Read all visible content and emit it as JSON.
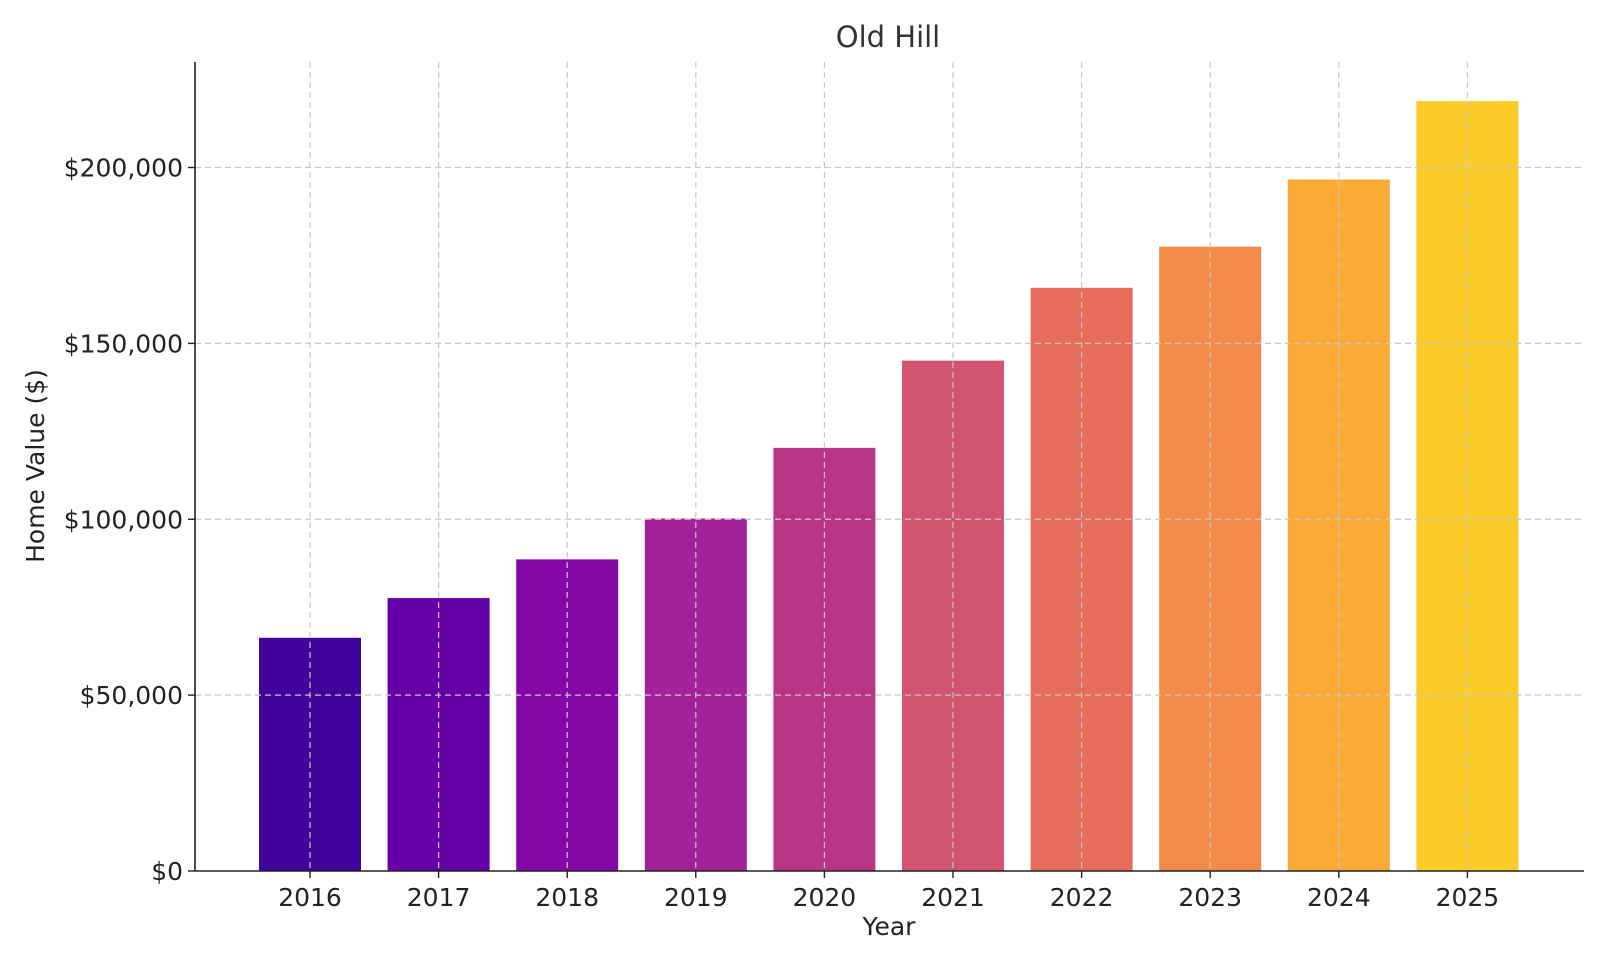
{
  "chart_data": {
    "type": "bar",
    "title": "Old Hill",
    "xlabel": "Year",
    "ylabel": "Home Value ($)",
    "categories": [
      "2016",
      "2017",
      "2018",
      "2019",
      "2020",
      "2021",
      "2022",
      "2023",
      "2024",
      "2025"
    ],
    "values": [
      66300,
      77600,
      88600,
      100200,
      120300,
      145100,
      165800,
      177500,
      196600,
      218900
    ],
    "ylim": [
      0,
      230000
    ],
    "yticks": [
      0,
      50000,
      100000,
      150000,
      200000
    ],
    "ytick_labels": [
      "$0",
      "$50,000",
      "$100,000",
      "$150,000",
      "$200,000"
    ],
    "grid": true,
    "colors": [
      "#40049b",
      "#6500a6",
      "#8406a6",
      "#a3229a",
      "#bb3586",
      "#d35470",
      "#e66d5b",
      "#f48a48",
      "#fbaa35",
      "#fbcc27"
    ]
  }
}
